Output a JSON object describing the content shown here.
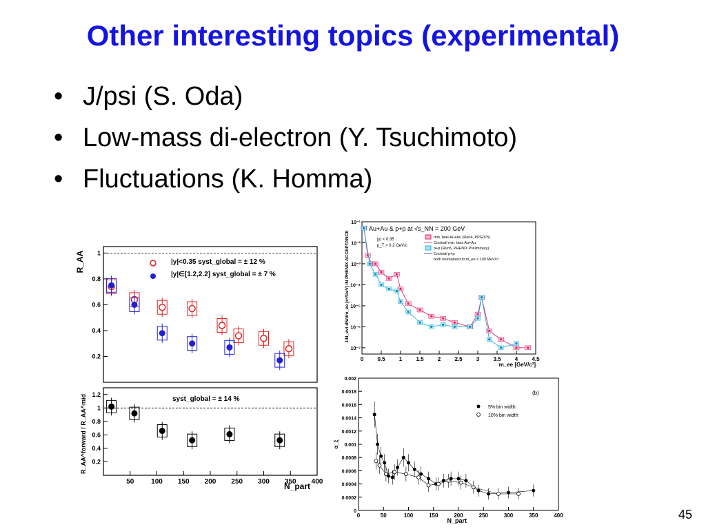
{
  "slide": {
    "title": "Other interesting topics (experimental)",
    "bullets": [
      "J/psi (S. Oda)",
      "Low-mass di-electron (Y. Tsuchimoto)",
      "Fluctuations (K. Homma)"
    ],
    "page_number": "45"
  },
  "chart_data": [
    {
      "type": "scatter",
      "panel": "top",
      "ylabel": "R_AA",
      "ylim": [
        0,
        1.05
      ],
      "xlim": [
        0,
        400
      ],
      "legend": [
        "|y|<0.35  syst_global = ± 12 %",
        "|y|∈[1.2,2.2]  syst_global = ± 7 %"
      ],
      "series": [
        {
          "name": "|y|<0.35",
          "color": "#e02020",
          "marker": "open-circle",
          "x": [
            15,
            58,
            110,
            166,
            222,
            253,
            300,
            347
          ],
          "y": [
            0.74,
            0.64,
            0.58,
            0.57,
            0.44,
            0.36,
            0.34,
            0.26
          ]
        },
        {
          "name": "|y|∈[1.2,2.2]",
          "color": "#2020d0",
          "marker": "filled-circle",
          "x": [
            15,
            58,
            110,
            166,
            236,
            330
          ],
          "y": [
            0.75,
            0.6,
            0.38,
            0.3,
            0.27,
            0.17
          ]
        }
      ],
      "ticks_y": [
        0.2,
        0.4,
        0.6,
        0.8,
        1
      ]
    },
    {
      "type": "scatter",
      "panel": "bottom",
      "ylabel": "R_AA^forward / R_AA^mid",
      "xlabel": "N_part",
      "annotation": "syst_global = ± 14 %",
      "xlim": [
        0,
        400
      ],
      "ylim": [
        0,
        1.3
      ],
      "x": [
        15,
        58,
        110,
        166,
        236,
        330
      ],
      "y": [
        1.02,
        0.92,
        0.66,
        0.52,
        0.61,
        0.52
      ],
      "ticks_y": [
        0.2,
        0.4,
        0.6,
        0.8,
        1,
        1.2
      ],
      "ticks_x": [
        50,
        100,
        150,
        200,
        250,
        300,
        350,
        400
      ]
    },
    {
      "type": "line",
      "panel": "dielectron",
      "title": "Au+Au & p+p at √s_NN = 200 GeV",
      "xlabel": "m_ee [GeV/c²]",
      "ylabel": "1/N_evt dN/dm_ee [c²/GeV] IN PHENIX ACCEPTANCE",
      "log_y": true,
      "xlim": [
        0,
        4.5
      ],
      "notes": [
        "|y| < 0.35",
        "p_T > 0.2 GeV/c"
      ],
      "legend": [
        "min. bias Au+Au (Run4, PPG075)",
        "Cocktail min. bias Au+Au",
        "p+p (Run5, PHENIX Preliminary)",
        "Cocktail p+p",
        "both normalized to m_ee ≤ 100 MeV/c²"
      ],
      "ticks_x": [
        "0",
        "0.5",
        "1",
        "1.5",
        "2",
        "2.5",
        "3",
        "3.5",
        "4",
        "4.5"
      ],
      "ticks_y": [
        "10⁻¹",
        "10⁻²",
        "10⁻³",
        "10⁻⁴",
        "10⁻⁵",
        "10⁻⁶",
        "10⁻⁷"
      ],
      "series": [
        {
          "name": "min. bias Au+Au (Run4, PPG075)",
          "color": "#e0206a",
          "x": [
            0.05,
            0.15,
            0.25,
            0.35,
            0.5,
            0.7,
            0.9,
            1.0,
            1.2,
            1.5,
            1.8,
            2.1,
            2.4,
            2.8,
            3.0,
            3.1,
            3.3,
            3.6,
            4.0,
            4.3
          ],
          "y": [
            -1.3,
            -2.6,
            -3.0,
            -3.0,
            -3.4,
            -3.7,
            -3.5,
            -4.2,
            -4.9,
            -5.2,
            -5.5,
            -5.6,
            -5.8,
            -6.0,
            -5.4,
            -4.6,
            -6.2,
            -6.6,
            -7.0,
            -7.0
          ]
        },
        {
          "name": "p+p (Run5, PHENIX Preliminary)",
          "color": "#20b0e0",
          "x": [
            0.05,
            0.2,
            0.35,
            0.5,
            0.7,
            0.9,
            1.0,
            1.2,
            1.5,
            1.8,
            2.1,
            2.4,
            2.8,
            3.0,
            3.1,
            3.3,
            3.6,
            4.0
          ],
          "y": [
            -1.3,
            -3.0,
            -3.5,
            -4.0,
            -4.2,
            -4.3,
            -4.8,
            -5.3,
            -5.8,
            -6.0,
            -5.9,
            -6.0,
            -6.0,
            -5.6,
            -4.6,
            -6.6,
            -7.0,
            -6.8
          ]
        }
      ]
    },
    {
      "type": "scatter",
      "panel": "fluctuations",
      "label": "(b)",
      "xlabel": "N_part",
      "ylabel": "α_ξ",
      "xlim": [
        0,
        400
      ],
      "ylim": [
        0,
        0.002
      ],
      "legend": [
        "5% bin width",
        "10% bin width"
      ],
      "ticks_y": [
        "0",
        "0.0002",
        "0.0004",
        "0.0006",
        "0.0008",
        "0.001",
        "0.0012",
        "0.0014",
        "0.0016",
        "0.0018",
        "0.002"
      ],
      "ticks_x": [
        "0",
        "50",
        "100",
        "150",
        "200",
        "250",
        "300",
        "350",
        "400"
      ],
      "series": [
        {
          "name": "5% bin width",
          "marker": "filled",
          "x": [
            32,
            38,
            45,
            52,
            60,
            68,
            78,
            90,
            100,
            112,
            125,
            140,
            155,
            170,
            185,
            200,
            215,
            240,
            260,
            300,
            350
          ],
          "y": [
            0.00145,
            0.001,
            0.00082,
            0.00072,
            0.00052,
            0.0005,
            0.00065,
            0.0008,
            0.00072,
            0.00062,
            0.00055,
            0.00048,
            0.0004,
            0.00045,
            0.00048,
            0.00048,
            0.00045,
            0.0003,
            0.00025,
            0.00027,
            0.0003
          ]
        },
        {
          "name": "10% bin width",
          "marker": "open",
          "x": [
            35,
            42,
            55,
            72,
            95,
            120,
            140,
            160,
            180,
            205,
            230,
            280,
            320
          ],
          "y": [
            0.00075,
            0.00068,
            0.00055,
            0.00058,
            0.00055,
            0.0005,
            0.00038,
            0.0004,
            0.00045,
            0.00042,
            0.00035,
            0.00025,
            0.00025
          ]
        }
      ]
    }
  ]
}
